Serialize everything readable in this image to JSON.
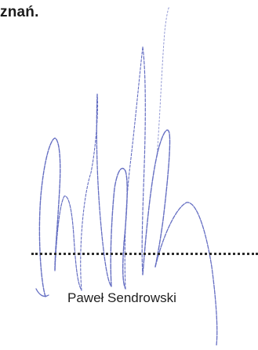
{
  "document": {
    "place_fragment": "znań.",
    "signer_name": "Paweł Sendrowski"
  },
  "signature": {
    "type": "handwritten",
    "ink_color": "#4a55b8"
  }
}
